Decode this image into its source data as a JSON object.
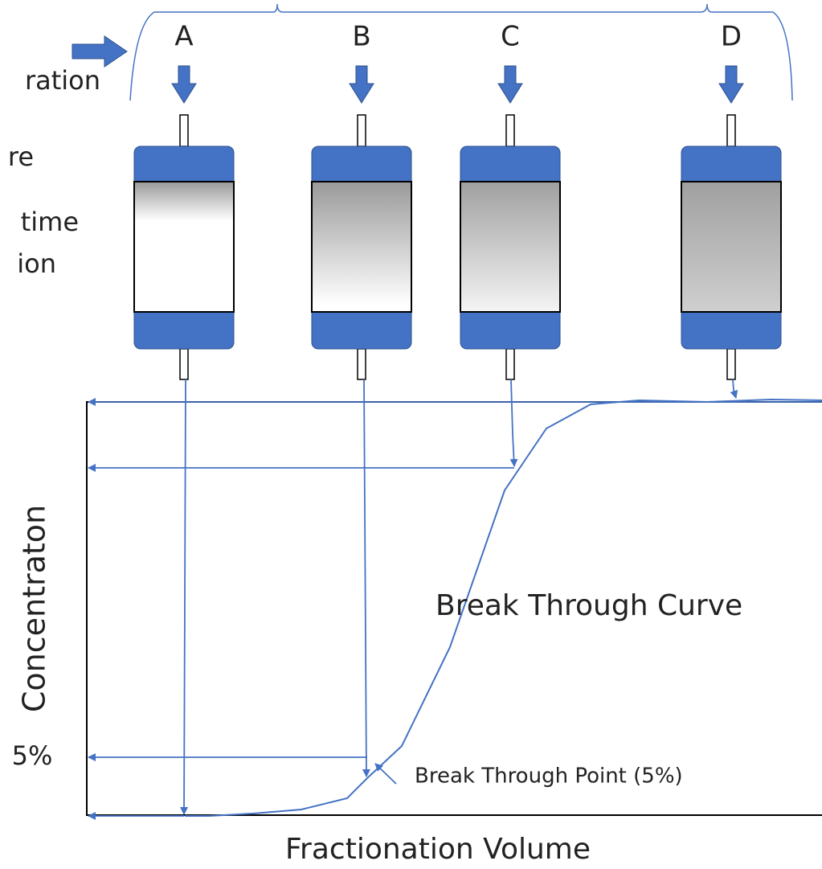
{
  "columns": [
    "A",
    "B",
    "C",
    "D"
  ],
  "left_texts": [
    "ration",
    "re",
    "time",
    "ion"
  ],
  "y_axis_label": "Concentraton",
  "five_percent_label": "5%",
  "curve_label": "Break Through Curve",
  "point_label": "Break Through Point (5%)",
  "x_axis_label": "Fractionation Volume"
}
